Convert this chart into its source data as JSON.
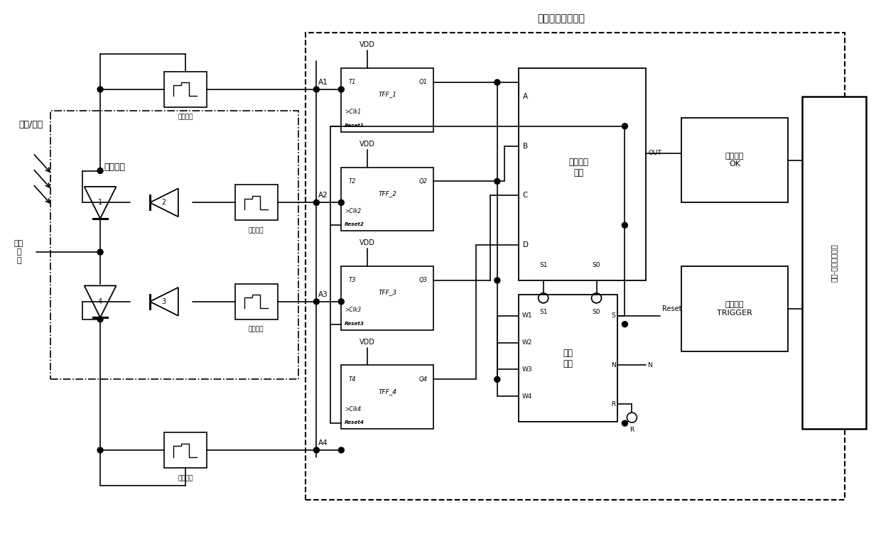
{
  "bg_color": "#ffffff",
  "line_color": "#000000",
  "fig_width": 12.4,
  "fig_height": 7.55,
  "photon_sync_label": "光子同步检测电路",
  "pixel_unit_label": "像素单元",
  "photon_noise_label": "光子/噪声",
  "reverse_bias_label": "反偏\n电\n压",
  "quench_label": "淩灭电路",
  "tree_label": "树型判断\n电路",
  "reset_circuit_label": "复位\n电路",
  "judge_signal_label": "判定信号\nOK",
  "trigger_signal_label": "触发信号\nTRIGGER",
  "tdc_label": "时间-数字转换电路"
}
